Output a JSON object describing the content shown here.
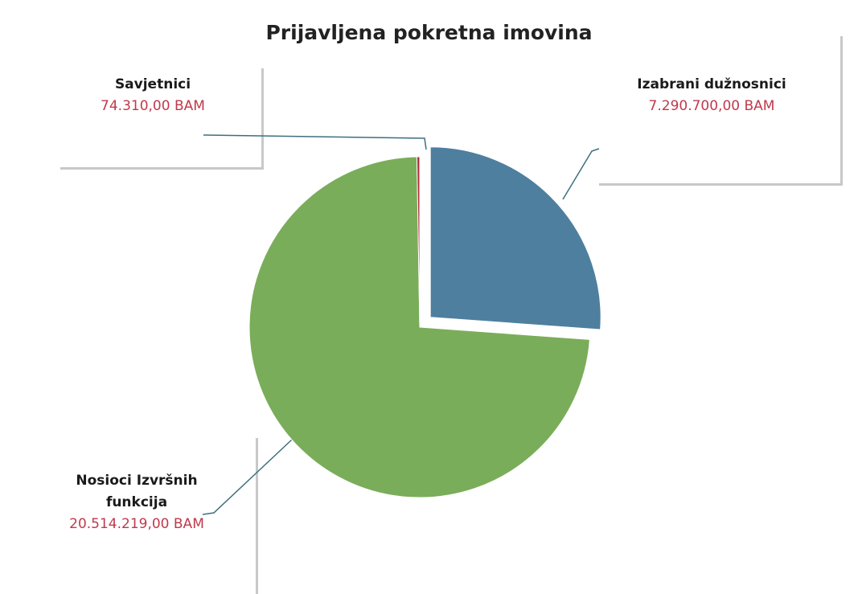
{
  "chart_data": {
    "type": "pie",
    "title": "Prijavljena pokretna imovina",
    "categories": [
      "Izabrani dužnosnici",
      "Nosioci Izvršnih funkcija",
      "Savjetnici"
    ],
    "values": [
      7290700,
      20514219,
      74310
    ],
    "value_labels": [
      "7.290.700,00 BAM",
      "20.514.219,00 BAM",
      "74.310,00 BAM"
    ],
    "colors": [
      "#4e7f9e",
      "#7aad5a",
      "#b0303e"
    ]
  }
}
